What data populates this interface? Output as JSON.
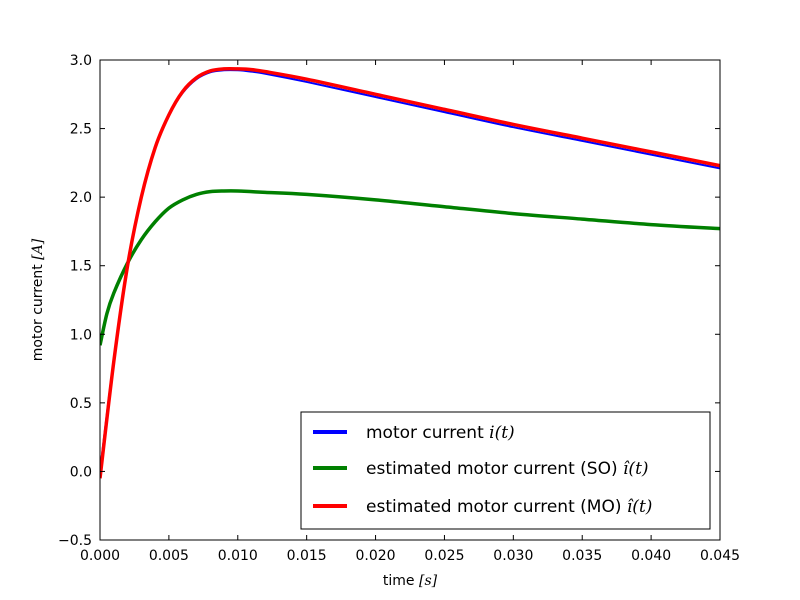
{
  "chart_data": {
    "type": "line",
    "xlabel": "time",
    "xlabel_unit": "[s]",
    "ylabel": "motor current",
    "ylabel_unit": "[A]",
    "xlim": [
      0.0,
      0.045
    ],
    "ylim": [
      -0.5,
      3.0
    ],
    "xticks": [
      0.0,
      0.005,
      0.01,
      0.015,
      0.02,
      0.025,
      0.03,
      0.035,
      0.04,
      0.045
    ],
    "xtick_labels": [
      "0.000",
      "0.005",
      "0.010",
      "0.015",
      "0.020",
      "0.025",
      "0.030",
      "0.035",
      "0.040",
      "0.045"
    ],
    "yticks": [
      -0.5,
      0.0,
      0.5,
      1.0,
      1.5,
      2.0,
      2.5,
      3.0
    ],
    "ytick_labels": [
      "−0.5",
      "0.0",
      "0.5",
      "1.0",
      "1.5",
      "2.0",
      "2.5",
      "3.0"
    ],
    "grid": false,
    "legend_position": "bottom-right",
    "series": [
      {
        "name": "motor current",
        "name_math": "i(t)",
        "color": "#0000ff",
        "x": [
          0.0,
          0.001,
          0.002,
          0.003,
          0.004,
          0.005,
          0.006,
          0.007,
          0.008,
          0.009,
          0.01,
          0.011,
          0.012,
          0.015,
          0.02,
          0.025,
          0.03,
          0.035,
          0.04,
          0.045
        ],
        "y": [
          0.0,
          0.82,
          1.5,
          2.0,
          2.36,
          2.6,
          2.76,
          2.86,
          2.91,
          2.925,
          2.925,
          2.915,
          2.9,
          2.84,
          2.73,
          2.62,
          2.51,
          2.41,
          2.31,
          2.21
        ]
      },
      {
        "name": "estimated motor current (SO)",
        "name_math": "î(t)",
        "color": "#008000",
        "x": [
          0.0,
          0.0005,
          0.001,
          0.002,
          0.003,
          0.004,
          0.005,
          0.006,
          0.007,
          0.008,
          0.009,
          0.01,
          0.011,
          0.012,
          0.015,
          0.02,
          0.025,
          0.03,
          0.035,
          0.04,
          0.045
        ],
        "y": [
          0.92,
          1.15,
          1.3,
          1.52,
          1.69,
          1.82,
          1.92,
          1.98,
          2.02,
          2.04,
          2.045,
          2.045,
          2.04,
          2.035,
          2.02,
          1.98,
          1.93,
          1.88,
          1.84,
          1.8,
          1.77
        ]
      },
      {
        "name": "estimated motor current (MO)",
        "name_math": "î(t)",
        "color": "#ff0000",
        "x": [
          0.0,
          0.001,
          0.002,
          0.003,
          0.004,
          0.005,
          0.006,
          0.007,
          0.008,
          0.009,
          0.01,
          0.011,
          0.012,
          0.015,
          0.02,
          0.025,
          0.03,
          0.035,
          0.04,
          0.045
        ],
        "y": [
          -0.05,
          0.8,
          1.5,
          2.0,
          2.36,
          2.6,
          2.77,
          2.87,
          2.92,
          2.935,
          2.935,
          2.93,
          2.915,
          2.86,
          2.75,
          2.64,
          2.53,
          2.43,
          2.33,
          2.23
        ]
      }
    ]
  }
}
